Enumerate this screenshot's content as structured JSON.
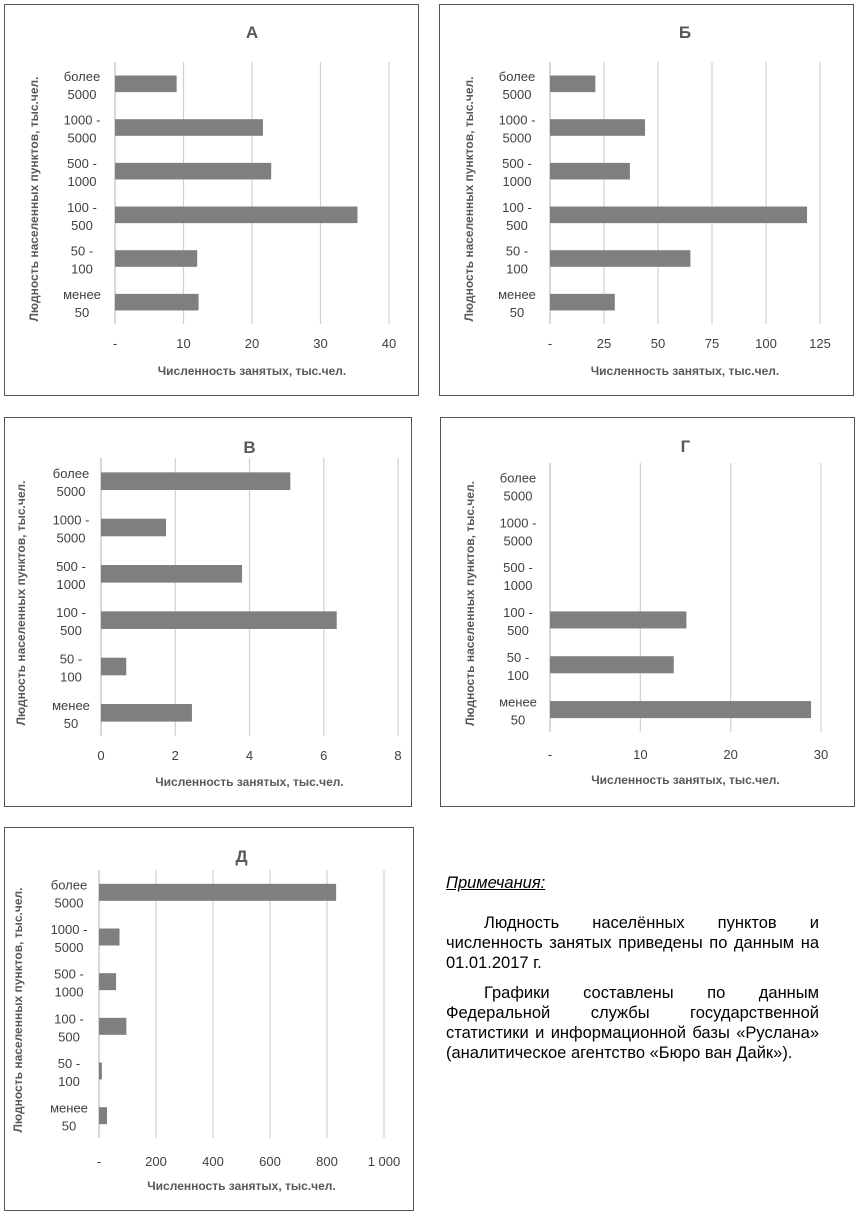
{
  "chart_data": [
    {
      "type": "bar",
      "orientation": "horizontal",
      "title": "А",
      "categories": [
        "более 5000",
        "1000 - 5000",
        "500 - 1000",
        "100 - 500",
        "50 - 100",
        "менее 50"
      ],
      "category_lines": [
        [
          "более",
          "5000"
        ],
        [
          "1000 -",
          "5000"
        ],
        [
          "500 -",
          "1000"
        ],
        [
          "100 -",
          "500"
        ],
        [
          "50 -",
          "100"
        ],
        [
          "менее",
          "50"
        ]
      ],
      "values": [
        9,
        21.6,
        22.8,
        35.4,
        12,
        12.2
      ],
      "xlabel": "Численность занятых, тыс.чел.",
      "ylabel": "Людность населенных пунктов, тыс.чел.",
      "xlim": [
        0,
        40
      ],
      "ticks": [
        0,
        10,
        20,
        30,
        40
      ],
      "tick_labels": [
        "-",
        "10",
        "20",
        "30",
        "40"
      ],
      "grid": true,
      "bar_color": "#7f7f7f"
    },
    {
      "type": "bar",
      "orientation": "horizontal",
      "title": "Б",
      "categories": [
        "более 5000",
        "1000 - 5000",
        "500 - 1000",
        "100 - 500",
        "50 - 100",
        "менее 50"
      ],
      "category_lines": [
        [
          "более",
          "5000"
        ],
        [
          "1000 -",
          "5000"
        ],
        [
          "500 -",
          "1000"
        ],
        [
          "100 -",
          "500"
        ],
        [
          "50 -",
          "100"
        ],
        [
          "менее",
          "50"
        ]
      ],
      "values": [
        21,
        44,
        37,
        119,
        65,
        30
      ],
      "xlabel": "Численность занятых, тыс.чел.",
      "ylabel": "Людность населенных пунктов, тыс.чел.",
      "xlim": [
        0,
        125
      ],
      "ticks": [
        0,
        25,
        50,
        75,
        100,
        125
      ],
      "tick_labels": [
        "-",
        "25",
        "50",
        "75",
        "100",
        "125"
      ],
      "grid": true,
      "bar_color": "#7f7f7f"
    },
    {
      "type": "bar",
      "orientation": "horizontal",
      "title": "В",
      "categories": [
        "более 5000",
        "1000 - 5000",
        "500 - 1000",
        "100 - 500",
        "50 - 100",
        "менее 50"
      ],
      "category_lines": [
        [
          "более",
          "5000"
        ],
        [
          "1000 -",
          "5000"
        ],
        [
          "500 -",
          "1000"
        ],
        [
          "100 -",
          "500"
        ],
        [
          "50 -",
          "100"
        ],
        [
          "менее",
          "50"
        ]
      ],
      "values": [
        5.1,
        1.75,
        3.8,
        6.35,
        0.68,
        2.45
      ],
      "xlabel": "Численность занятых, тыс.чел.",
      "ylabel": "Людность населенных пунктов, тыс.чел.",
      "xlim": [
        0,
        8
      ],
      "ticks": [
        0,
        2,
        4,
        6,
        8
      ],
      "tick_labels": [
        "0",
        "2",
        "4",
        "6",
        "8"
      ],
      "grid": true,
      "bar_color": "#7f7f7f"
    },
    {
      "type": "bar",
      "orientation": "horizontal",
      "title": "Г",
      "categories": [
        "более 5000",
        "1000 - 5000",
        "500 - 1000",
        "100 - 500",
        "50 - 100",
        "менее 50"
      ],
      "category_lines": [
        [
          "более",
          "5000"
        ],
        [
          "1000 -",
          "5000"
        ],
        [
          "500 -",
          "1000"
        ],
        [
          "100 -",
          "500"
        ],
        [
          "50 -",
          "100"
        ],
        [
          "менее",
          "50"
        ]
      ],
      "values": [
        0,
        0,
        0,
        15.1,
        13.7,
        28.9
      ],
      "xlabel": "Численность занятых, тыс.чел.",
      "ylabel": "Людность населенных пунктов, тыс.чел.",
      "xlim": [
        0,
        30
      ],
      "ticks": [
        0,
        10,
        20,
        30
      ],
      "tick_labels": [
        "-",
        "10",
        "20",
        "30"
      ],
      "grid": true,
      "bar_color": "#7f7f7f"
    },
    {
      "type": "bar",
      "orientation": "horizontal",
      "title": "Д",
      "categories": [
        "более 5000",
        "1000 - 5000",
        "500 - 1000",
        "100 - 500",
        "50 - 100",
        "менее 50"
      ],
      "category_lines": [
        [
          "более",
          "5000"
        ],
        [
          "1000 -",
          "5000"
        ],
        [
          "500 -",
          "1000"
        ],
        [
          "100 -",
          "500"
        ],
        [
          "50 -",
          "100"
        ],
        [
          "менее",
          "50"
        ]
      ],
      "values": [
        832,
        72,
        60,
        96,
        10,
        28
      ],
      "xlabel": "Численность занятых, тыс.чел.",
      "ylabel": "Людность населенных пунктов, тыс.чел.",
      "xlim": [
        0,
        1000
      ],
      "ticks": [
        0,
        200,
        400,
        600,
        800,
        1000
      ],
      "tick_labels": [
        "-",
        "200",
        "400",
        "600",
        "800",
        "1 000"
      ],
      "grid": true,
      "bar_color": "#7f7f7f"
    }
  ],
  "notes": {
    "heading": "Примечания:",
    "paragraph_1": "Людность населённых пунктов и численность занятых приведены по данным на 01.01.2017 г.",
    "paragraph_2": "Графики составлены по данным Федеральной службы государственной статистики и информационной базы «Руслана» (аналитическое агентство «Бюро ван Дайк»)."
  }
}
